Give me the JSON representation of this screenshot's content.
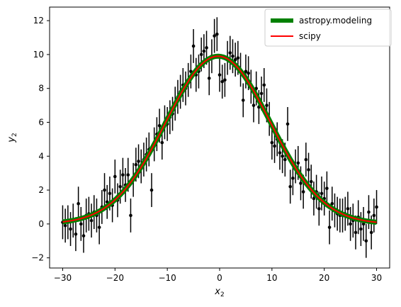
{
  "chart_data": {
    "type": "scatter",
    "xlabel_main": "x",
    "xlabel_sub": "2",
    "ylabel_main": "y",
    "ylabel_sub": "2",
    "xlim": [
      -32.5,
      32.5
    ],
    "ylim": [
      -2.6,
      12.8
    ],
    "xticks": [
      -30,
      -20,
      -10,
      0,
      10,
      20,
      30
    ],
    "xtick_labels": [
      "−30",
      "−20",
      "−10",
      "0",
      "10",
      "20",
      "30"
    ],
    "yticks": [
      -2,
      0,
      2,
      4,
      6,
      8,
      10,
      12
    ],
    "ytick_labels": [
      "−2",
      "0",
      "2",
      "4",
      "6",
      "8",
      "10",
      "12"
    ],
    "grid": false,
    "legend_position": "top-right",
    "series": [
      {
        "name": "astropy.modeling",
        "kind": "line",
        "color": "#008000",
        "model": "gaussian",
        "amplitude": 9.9,
        "mean": -0.3,
        "stddev": 10.0,
        "x_range": [
          -30,
          30
        ]
      },
      {
        "name": "scipy",
        "kind": "line",
        "color": "#ff0000",
        "model": "gaussian",
        "amplitude": 9.9,
        "mean": -0.3,
        "stddev": 10.0,
        "x_range": [
          -30,
          30
        ]
      },
      {
        "name": "",
        "kind": "errorbar",
        "color": "#000000",
        "x": [
          -30.0,
          -29.5,
          -29.0,
          -28.5,
          -28.0,
          -27.5,
          -27.0,
          -26.5,
          -26.0,
          -25.5,
          -25.0,
          -24.5,
          -24.0,
          -23.5,
          -23.0,
          -22.5,
          -22.0,
          -21.5,
          -21.0,
          -20.5,
          -20.0,
          -19.5,
          -19.0,
          -18.5,
          -18.0,
          -17.5,
          -17.0,
          -16.5,
          -16.0,
          -15.5,
          -15.0,
          -14.5,
          -14.0,
          -13.5,
          -13.0,
          -12.5,
          -12.0,
          -11.5,
          -11.0,
          -10.5,
          -10.0,
          -9.5,
          -9.0,
          -8.5,
          -8.0,
          -7.5,
          -7.0,
          -6.5,
          -6.0,
          -5.5,
          -5.0,
          -4.5,
          -4.0,
          -3.5,
          -3.0,
          -2.5,
          -2.0,
          -1.5,
          -1.0,
          -0.5,
          0.0,
          0.5,
          1.0,
          1.5,
          2.0,
          2.5,
          3.0,
          3.5,
          4.0,
          4.5,
          5.0,
          5.5,
          6.0,
          6.5,
          7.0,
          7.5,
          8.0,
          8.5,
          9.0,
          9.5,
          10.0,
          10.5,
          11.0,
          11.5,
          12.0,
          12.5,
          13.0,
          13.5,
          14.0,
          14.5,
          15.0,
          15.5,
          16.0,
          16.5,
          17.0,
          17.5,
          18.0,
          18.5,
          19.0,
          19.5,
          20.0,
          20.5,
          21.0,
          21.5,
          22.0,
          22.5,
          23.0,
          23.5,
          24.0,
          24.5,
          25.0,
          25.5,
          26.0,
          26.5,
          27.0,
          27.5,
          28.0,
          28.5,
          29.0,
          29.5,
          30.0
        ],
        "y": [
          0.1,
          -0.1,
          0.1,
          -0.3,
          0.2,
          -0.6,
          1.2,
          0.0,
          -0.7,
          0.5,
          0.6,
          0.2,
          0.7,
          0.5,
          -0.2,
          1.0,
          2.0,
          1.3,
          1.8,
          1.1,
          2.8,
          1.4,
          2.2,
          2.9,
          2.3,
          2.9,
          0.5,
          2.6,
          3.5,
          3.7,
          3.4,
          3.8,
          4.1,
          4.4,
          2.0,
          4.7,
          5.3,
          5.8,
          4.8,
          6.0,
          5.9,
          6.3,
          6.5,
          7.1,
          7.5,
          7.8,
          8.2,
          8.0,
          8.5,
          9.0,
          10.5,
          8.8,
          9.0,
          10.0,
          10.2,
          10.4,
          8.6,
          9.9,
          11.1,
          11.2,
          8.8,
          8.4,
          8.5,
          9.8,
          10.1,
          9.9,
          9.7,
          9.8,
          9.1,
          7.3,
          9.0,
          8.9,
          8.1,
          7.0,
          8.0,
          6.9,
          7.7,
          8.2,
          7.0,
          6.2,
          4.8,
          4.6,
          5.0,
          4.2,
          4.0,
          3.8,
          5.9,
          2.2,
          2.7,
          3.4,
          3.6,
          2.4,
          1.9,
          3.8,
          3.2,
          2.5,
          1.5,
          1.9,
          0.9,
          1.8,
          1.5,
          2.1,
          -0.2,
          1.2,
          0.8,
          0.6,
          0.5,
          0.5,
          0.6,
          0.9,
          0.0,
          0.2,
          -0.5,
          0.4,
          -0.3,
          0.0,
          -1.0,
          0.7,
          -0.5,
          0.5,
          1.0
        ],
        "yerr": 1.0
      }
    ]
  }
}
